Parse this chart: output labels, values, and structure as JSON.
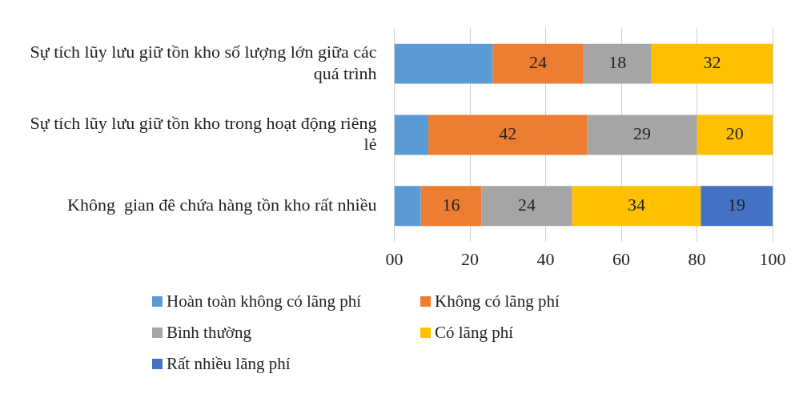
{
  "chart_data": {
    "type": "bar",
    "orientation": "horizontal",
    "stacked": true,
    "categories": [
      "Sự tích lũy lưu giữ tồn kho số lượng lớn giữa các quá trình",
      "Sự tích lũy lưu giữ tồn kho trong hoạt động riêng lẻ",
      "Không  gian đê chứa hàng tồn kho rất nhiều"
    ],
    "series": [
      {
        "name": "Hoàn toàn không có lãng phí",
        "color": "#5b9bd5",
        "values": [
          26,
          9,
          7
        ],
        "value_labels": [
          null,
          null,
          null
        ]
      },
      {
        "name": "Không có lãng phí",
        "color": "#ed7d31",
        "values": [
          24,
          42,
          16
        ],
        "value_labels": [
          "24",
          "42",
          "16"
        ]
      },
      {
        "name": "Bình thường",
        "color": "#a5a5a5",
        "values": [
          18,
          29,
          24
        ],
        "value_labels": [
          "18",
          "29",
          "24"
        ]
      },
      {
        "name": "Có lãng phí",
        "color": "#ffc000",
        "values": [
          32,
          20,
          34
        ],
        "value_labels": [
          "32",
          "20",
          "34"
        ]
      },
      {
        "name": "Rất nhiều lãng phí",
        "color": "#4472c4",
        "values": [
          0,
          0,
          19
        ],
        "value_labels": [
          null,
          null,
          "19"
        ]
      }
    ],
    "xlim": [
      0,
      100
    ],
    "xticks": [
      {
        "value": 0,
        "label": "00"
      },
      20,
      40,
      60,
      80,
      100
    ],
    "grid": "x",
    "legend": "bottom"
  }
}
